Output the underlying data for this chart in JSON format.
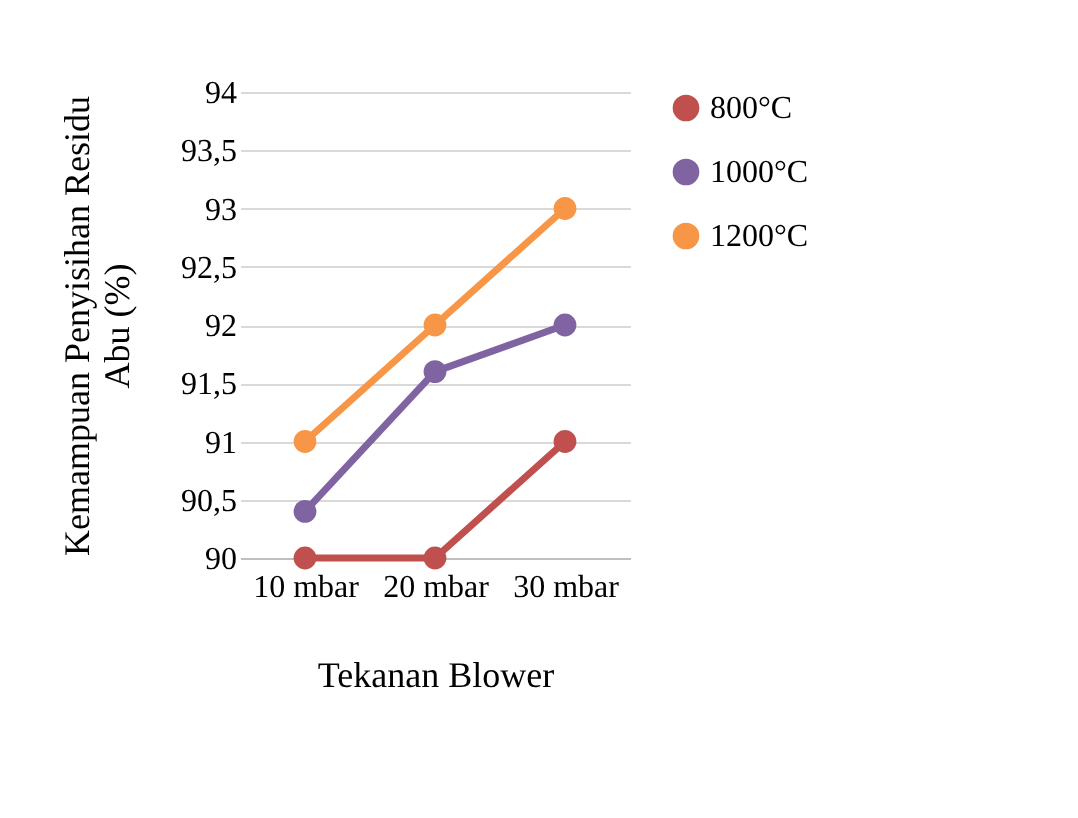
{
  "chart_data": {
    "type": "line",
    "xlabel": "Tekanan Blower",
    "ylabel": "Kemampuan Penyisihan Residu Abu (%)",
    "categories": [
      "10 mbar",
      "20 mbar",
      "30 mbar"
    ],
    "series": [
      {
        "name": "800°C",
        "color": "#c0504d",
        "values": [
          90,
          90,
          91
        ]
      },
      {
        "name": "1000°C",
        "color": "#8064a2",
        "values": [
          90.4,
          91.6,
          92
        ]
      },
      {
        "name": "1200°C",
        "color": "#f79646",
        "values": [
          91,
          92,
          93
        ]
      }
    ],
    "ylim": [
      90,
      94
    ],
    "yticks": [
      90,
      {
        "value": 90.5,
        "label": "90,5"
      },
      91,
      {
        "value": 91.5,
        "label": "91,5"
      },
      92,
      {
        "value": 92.5,
        "label": "92,5"
      },
      93,
      {
        "value": 93.5,
        "label": "93,5"
      },
      94
    ],
    "grid": "y",
    "legend": "right",
    "marker": "circle",
    "line_style": "solid"
  }
}
